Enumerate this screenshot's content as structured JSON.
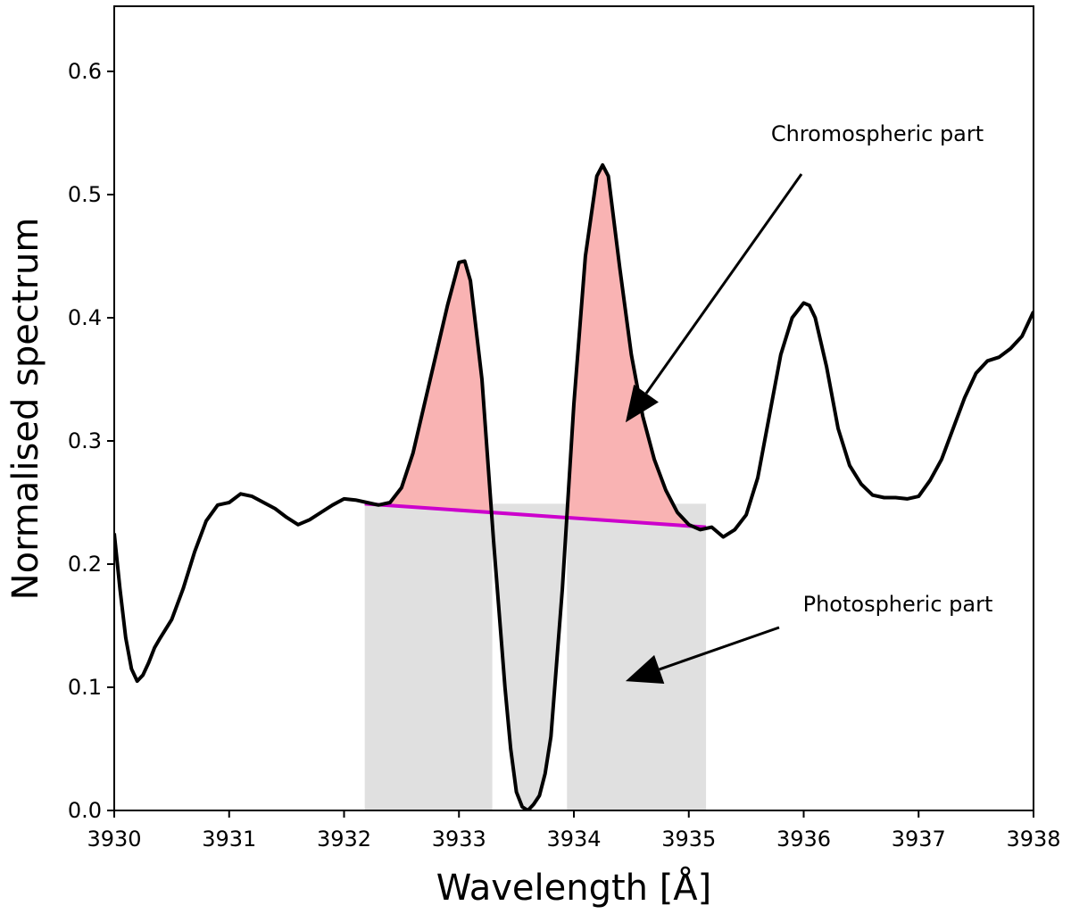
{
  "chart_data": {
    "type": "line",
    "xlabel": "Wavelength [Å]",
    "ylabel": "Normalised spectrum",
    "xlim": [
      3930,
      3938
    ],
    "ylim": [
      0,
      0.65
    ],
    "x_ticks": [
      3930,
      3931,
      3932,
      3933,
      3934,
      3935,
      3936,
      3937,
      3938
    ],
    "y_ticks": [
      0.0,
      0.1,
      0.2,
      0.3,
      0.4,
      0.5,
      0.6
    ],
    "grid": false,
    "series": [
      {
        "role": "spectrum",
        "color": "#000000",
        "x": [
          3930.0,
          3930.05,
          3930.1,
          3930.15,
          3930.2,
          3930.25,
          3930.3,
          3930.35,
          3930.4,
          3930.5,
          3930.6,
          3930.7,
          3930.8,
          3930.9,
          3931.0,
          3931.1,
          3931.2,
          3931.3,
          3931.4,
          3931.5,
          3931.6,
          3931.7,
          3931.8,
          3931.9,
          3932.0,
          3932.1,
          3932.2,
          3932.3,
          3932.4,
          3932.5,
          3932.6,
          3932.7,
          3932.8,
          3932.9,
          3933.0,
          3933.05,
          3933.1,
          3933.2,
          3933.3,
          3933.4,
          3933.45,
          3933.5,
          3933.55,
          3933.6,
          3933.65,
          3933.7,
          3933.75,
          3933.8,
          3933.9,
          3934.0,
          3934.1,
          3934.2,
          3934.25,
          3934.3,
          3934.4,
          3934.5,
          3934.6,
          3934.7,
          3934.8,
          3934.9,
          3935.0,
          3935.1,
          3935.2,
          3935.3,
          3935.4,
          3935.5,
          3935.6,
          3935.7,
          3935.8,
          3935.9,
          3936.0,
          3936.05,
          3936.1,
          3936.2,
          3936.3,
          3936.4,
          3936.5,
          3936.6,
          3936.7,
          3936.8,
          3936.9,
          3937.0,
          3937.1,
          3937.2,
          3937.3,
          3937.4,
          3937.5,
          3937.6,
          3937.7,
          3937.8,
          3937.9,
          3938.0
        ],
        "y": [
          0.225,
          0.18,
          0.14,
          0.115,
          0.105,
          0.11,
          0.12,
          0.132,
          0.14,
          0.155,
          0.18,
          0.21,
          0.235,
          0.248,
          0.25,
          0.257,
          0.255,
          0.25,
          0.245,
          0.238,
          0.232,
          0.236,
          0.242,
          0.248,
          0.253,
          0.252,
          0.25,
          0.248,
          0.25,
          0.262,
          0.29,
          0.33,
          0.37,
          0.41,
          0.445,
          0.446,
          0.43,
          0.35,
          0.22,
          0.1,
          0.05,
          0.015,
          0.003,
          0.0,
          0.005,
          0.012,
          0.03,
          0.06,
          0.18,
          0.33,
          0.45,
          0.515,
          0.524,
          0.515,
          0.44,
          0.37,
          0.32,
          0.285,
          0.26,
          0.242,
          0.232,
          0.228,
          0.23,
          0.222,
          0.228,
          0.24,
          0.27,
          0.32,
          0.37,
          0.4,
          0.412,
          0.41,
          0.4,
          0.36,
          0.31,
          0.28,
          0.265,
          0.256,
          0.254,
          0.254,
          0.253,
          0.255,
          0.268,
          0.285,
          0.31,
          0.335,
          0.355,
          0.365,
          0.368,
          0.375,
          0.385,
          0.405
        ]
      },
      {
        "role": "continuum",
        "color": "#cc00cc",
        "x": [
          3932.18,
          3935.15
        ],
        "y": [
          0.249,
          0.23
        ]
      }
    ],
    "photospheric_region": {
      "x": [
        3932.18,
        3935.15
      ],
      "color": "#e0e0e0"
    },
    "chromospheric_fill_color": "#f9b3b3",
    "annotations": [
      {
        "text": "Chromospheric part",
        "arrow_to": [
          3934.45,
          0.315
        ]
      },
      {
        "text": "Photospheric part",
        "arrow_to": [
          3934.45,
          0.105
        ]
      }
    ]
  }
}
